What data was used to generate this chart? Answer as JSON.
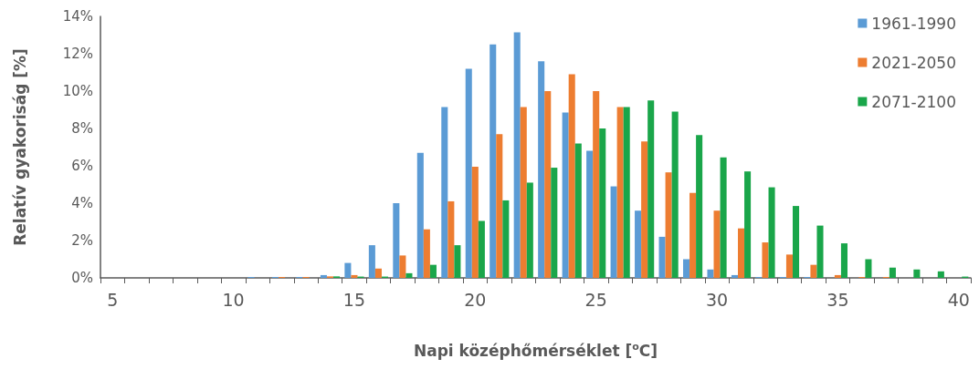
{
  "chart_data": {
    "type": "bar",
    "xlabel": "Napi középhőmérséklet [$^{o}$C]",
    "ylabel": "Relatív gyakoriság [%]",
    "categories": [
      "5",
      null,
      null,
      null,
      null,
      "10",
      null,
      null,
      null,
      null,
      "15",
      null,
      null,
      null,
      null,
      "20",
      null,
      null,
      null,
      null,
      "25",
      null,
      null,
      null,
      null,
      "30",
      null,
      null,
      null,
      null,
      "35",
      null,
      null,
      null,
      null,
      "40"
    ],
    "series": [
      {
        "name": "1961-1990",
        "color": "#5b9bd5",
        "values": [
          0,
          0,
          0,
          0,
          0,
          0,
          0.05,
          0.05,
          0.05,
          0.15,
          0.8,
          1.75,
          4.0,
          6.7,
          9.15,
          11.2,
          12.5,
          13.15,
          11.6,
          8.85,
          6.8,
          4.9,
          3.6,
          2.2,
          1.0,
          0.45,
          0.15,
          0.05,
          0.05,
          0.05,
          0,
          0,
          0,
          0,
          0,
          0
        ]
      },
      {
        "name": "2021-2050",
        "color": "#ed7d31",
        "values": [
          0,
          0,
          0,
          0,
          0,
          0,
          0,
          0.05,
          0.05,
          0.08,
          0.15,
          0.5,
          1.2,
          2.6,
          4.1,
          5.95,
          7.7,
          9.15,
          10.0,
          10.9,
          10.0,
          9.15,
          7.3,
          5.65,
          4.55,
          3.6,
          2.65,
          1.9,
          1.25,
          0.7,
          0.15,
          0.05,
          0.05,
          0,
          0,
          0
        ]
      },
      {
        "name": "2071-2100",
        "color": "#1aa64a",
        "values": [
          0,
          0,
          0,
          0,
          0,
          0,
          0,
          0,
          0,
          0.08,
          0.07,
          0.07,
          0.25,
          0.7,
          1.75,
          3.05,
          4.15,
          5.1,
          5.9,
          7.2,
          8.0,
          9.15,
          9.5,
          8.9,
          7.65,
          6.45,
          5.7,
          4.85,
          3.85,
          2.8,
          1.85,
          1.0,
          0.55,
          0.45,
          0.35,
          0.07
        ]
      }
    ],
    "ylim": [
      0,
      14
    ],
    "yticks": [
      {
        "value": 0,
        "label": "0%"
      },
      {
        "value": 2,
        "label": "2%"
      },
      {
        "value": 4,
        "label": "4%"
      },
      {
        "value": 6,
        "label": "6%"
      },
      {
        "value": 8,
        "label": "8%"
      },
      {
        "value": 10,
        "label": "10%"
      },
      {
        "value": 12,
        "label": "12%"
      },
      {
        "value": 14,
        "label": "14%"
      }
    ],
    "grid": false,
    "legend": "top right"
  }
}
